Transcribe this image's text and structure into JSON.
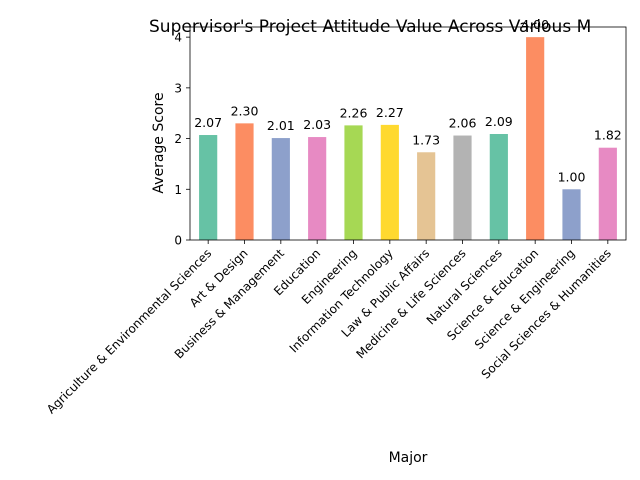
{
  "chart_data": {
    "type": "bar",
    "title": "Supervisor's Project Attitude Value Across Various M",
    "xlabel": "Major",
    "ylabel": "Average Score",
    "ylim": [
      0,
      4.2
    ],
    "yticks": [
      0,
      1,
      2,
      3,
      4
    ],
    "grid": false,
    "legend": "none",
    "categories": [
      "Agriculture & Environmental Sciences",
      "Art & Design",
      "Business & Management",
      "Education",
      "Engineering",
      "Information Technology",
      "Law & Public Affairs",
      "Medicine & Life Sciences",
      "Natural Sciences",
      "Science & Education",
      "Science & Engineering",
      "Social Sciences & Humanities"
    ],
    "values": [
      2.07,
      2.3,
      2.01,
      2.03,
      2.26,
      2.27,
      1.73,
      2.06,
      2.09,
      4.0,
      1.0,
      1.82
    ],
    "data_labels": [
      "2.07",
      "2.30",
      "2.01",
      "2.03",
      "2.26",
      "2.27",
      "1.73",
      "2.06",
      "2.09",
      "4.00",
      "1.00",
      "1.82"
    ],
    "colors": [
      "#66c2a5",
      "#fc8d62",
      "#8da0cb",
      "#e78ac3",
      "#a6d854",
      "#ffd92f",
      "#e5c494",
      "#b3b3b3",
      "#66c2a5",
      "#fc8d62",
      "#8da0cb",
      "#e78ac3"
    ]
  }
}
